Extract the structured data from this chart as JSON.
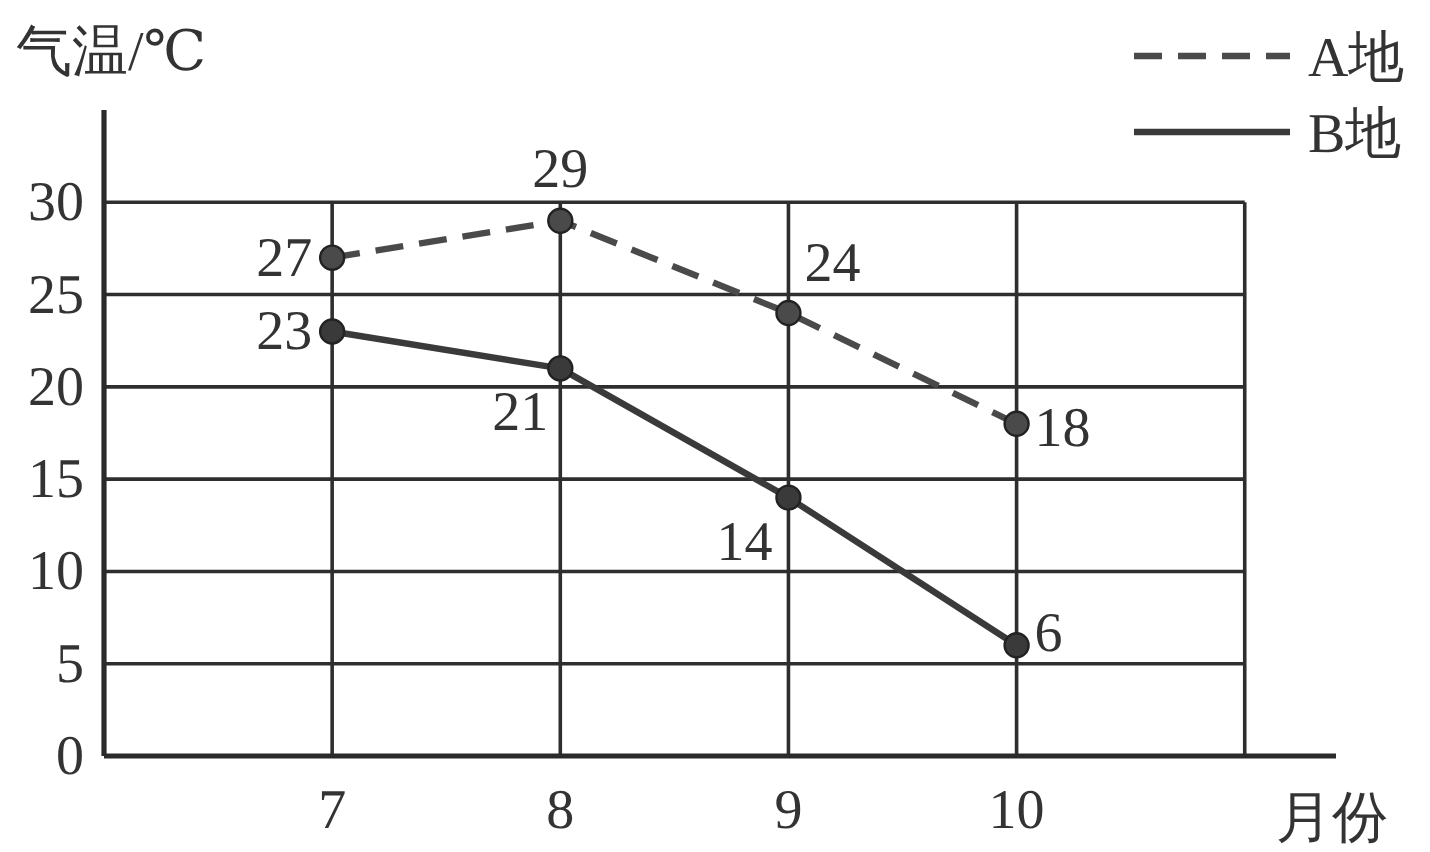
{
  "chart_data": {
    "type": "line",
    "xlabel": "月份",
    "ylabel": "气温/℃",
    "x": [
      7,
      8,
      9,
      10
    ],
    "xlim": [
      6,
      11.4
    ],
    "xticks": [
      7,
      8,
      9,
      10,
      {
        "value": 11,
        "label": null
      }
    ],
    "ylim": [
      0,
      35
    ],
    "yticks": [
      0,
      5,
      10,
      15,
      20,
      25,
      30
    ],
    "grid": true,
    "legend": "top right",
    "marker": "circle",
    "data_labels": true,
    "series": [
      {
        "name": "A地",
        "color": "#4a4a4a",
        "line_style": "dashed",
        "values": [
          27,
          29,
          24,
          18
        ]
      },
      {
        "name": "B地",
        "color": "#3a3a3a",
        "line_style": "solid",
        "values": [
          23,
          21,
          14,
          6
        ]
      }
    ]
  }
}
